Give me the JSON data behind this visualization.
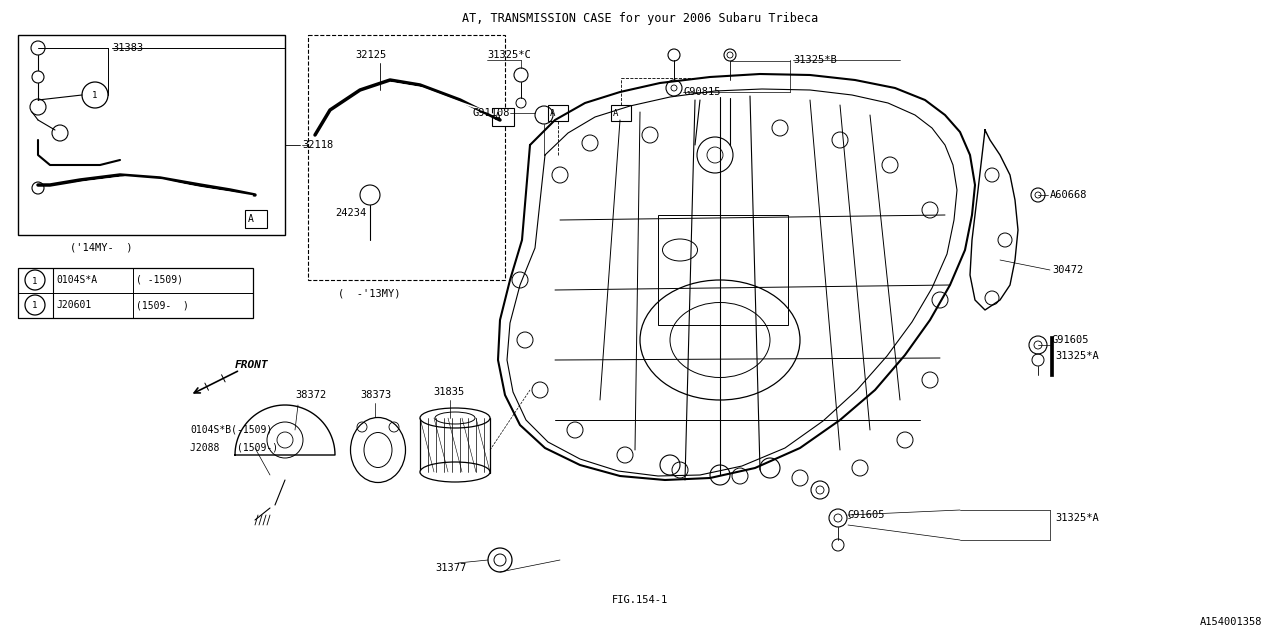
{
  "title": "AT, TRANSMISSION CASE for your 2006 Subaru Tribeca",
  "bg_color": "#ffffff",
  "line_color": "#000000",
  "fig_label": "FIG.154-1",
  "ref_label": "A154001358",
  "figsize": [
    12.8,
    6.4
  ],
  "dpi": 100
}
